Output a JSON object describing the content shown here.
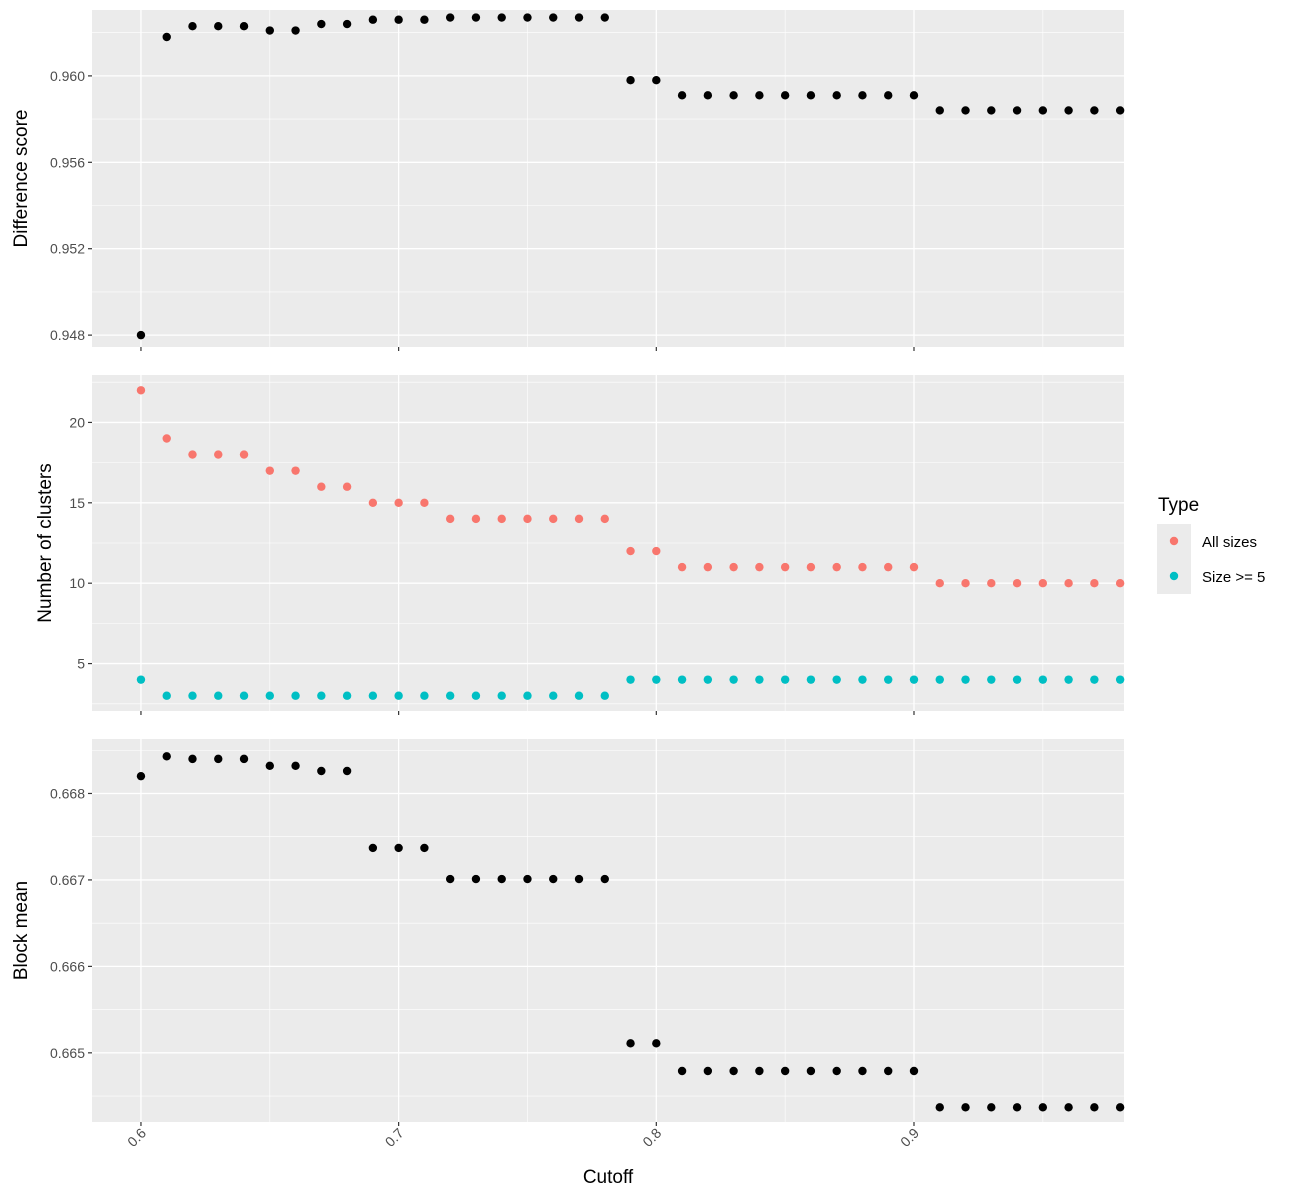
{
  "chart_data": {
    "type": "scatter",
    "xlabel": "Cutoff",
    "x_ticks": [
      "0.6",
      "0.7",
      "0.8",
      "0.9"
    ],
    "x_tick_values": [
      0.6,
      0.7,
      0.8,
      0.9
    ],
    "xlim": [
      0.581,
      0.9815
    ],
    "x": [
      0.6,
      0.61,
      0.62,
      0.63,
      0.64,
      0.65,
      0.66,
      0.67,
      0.68,
      0.69,
      0.7,
      0.71,
      0.72,
      0.73,
      0.74,
      0.75,
      0.76,
      0.77,
      0.78,
      0.79,
      0.8,
      0.81,
      0.82,
      0.83,
      0.84,
      0.85,
      0.86,
      0.87,
      0.88,
      0.89,
      0.9,
      0.91,
      0.92,
      0.93,
      0.94,
      0.95,
      0.96,
      0.97,
      0.98
    ],
    "panels": [
      {
        "ylabel": "Difference score",
        "y_ticks": [
          "0.948",
          "0.952",
          "0.956",
          "0.960"
        ],
        "y_tick_values": [
          0.948,
          0.952,
          0.956,
          0.96
        ],
        "ylim": [
          0.94745,
          0.96305
        ],
        "series": [
          {
            "color": "#000000",
            "values": [
              0.948,
              0.9618,
              0.9623,
              0.9623,
              0.9623,
              0.9621,
              0.9621,
              0.9624,
              0.9624,
              0.9626,
              0.9626,
              0.9626,
              0.9627,
              0.9627,
              0.9627,
              0.9627,
              0.9627,
              0.9627,
              0.9627,
              0.9598,
              0.9598,
              0.9591,
              0.9591,
              0.9591,
              0.9591,
              0.9591,
              0.9591,
              0.9591,
              0.9591,
              0.9591,
              0.9591,
              0.9584,
              0.9584,
              0.9584,
              0.9584,
              0.9584,
              0.9584,
              0.9584,
              0.9584
            ]
          }
        ]
      },
      {
        "ylabel": "Number of clusters",
        "y_ticks": [
          "5",
          "10",
          "15",
          "20"
        ],
        "y_tick_values": [
          5,
          10,
          15,
          20
        ],
        "ylim": [
          2.05,
          22.95
        ],
        "series": [
          {
            "name": "All sizes",
            "color": "#F8766D",
            "values": [
              22,
              19,
              18,
              18,
              18,
              17,
              17,
              16,
              16,
              15,
              15,
              15,
              14,
              14,
              14,
              14,
              14,
              14,
              14,
              12,
              12,
              11,
              11,
              11,
              11,
              11,
              11,
              11,
              11,
              11,
              11,
              10,
              10,
              10,
              10,
              10,
              10,
              10,
              10
            ]
          },
          {
            "name": "Size >= 5",
            "color": "#00BFC4",
            "values": [
              4,
              3,
              3,
              3,
              3,
              3,
              3,
              3,
              3,
              3,
              3,
              3,
              3,
              3,
              3,
              3,
              3,
              3,
              3,
              4,
              4,
              4,
              4,
              4,
              4,
              4,
              4,
              4,
              4,
              4,
              4,
              4,
              4,
              4,
              4,
              4,
              4,
              4,
              4
            ]
          }
        ]
      },
      {
        "ylabel": "Block mean",
        "y_ticks": [
          "0.665",
          "0.666",
          "0.667",
          "0.668"
        ],
        "y_tick_values": [
          0.665,
          0.666,
          0.667,
          0.668
        ],
        "ylim": [
          0.6642,
          0.66863
        ],
        "series": [
          {
            "color": "#000000",
            "values": [
              0.6682,
              0.66843,
              0.6684,
              0.6684,
              0.6684,
              0.66832,
              0.66832,
              0.66826,
              0.66826,
              0.66737,
              0.66737,
              0.66737,
              0.66701,
              0.66701,
              0.66701,
              0.66701,
              0.66701,
              0.66701,
              0.66701,
              0.66511,
              0.66511,
              0.66479,
              0.66479,
              0.66479,
              0.66479,
              0.66479,
              0.66479,
              0.66479,
              0.66479,
              0.66479,
              0.66479,
              0.66437,
              0.66437,
              0.66437,
              0.66437,
              0.66437,
              0.66437,
              0.66437,
              0.66437
            ]
          }
        ]
      }
    ],
    "legend": {
      "title": "Type",
      "position": "right",
      "items": [
        "All sizes",
        "Size >= 5"
      ],
      "colors": [
        "#F8766D",
        "#00BFC4"
      ]
    },
    "panel_background": "#EBEBEB",
    "grid": true
  }
}
